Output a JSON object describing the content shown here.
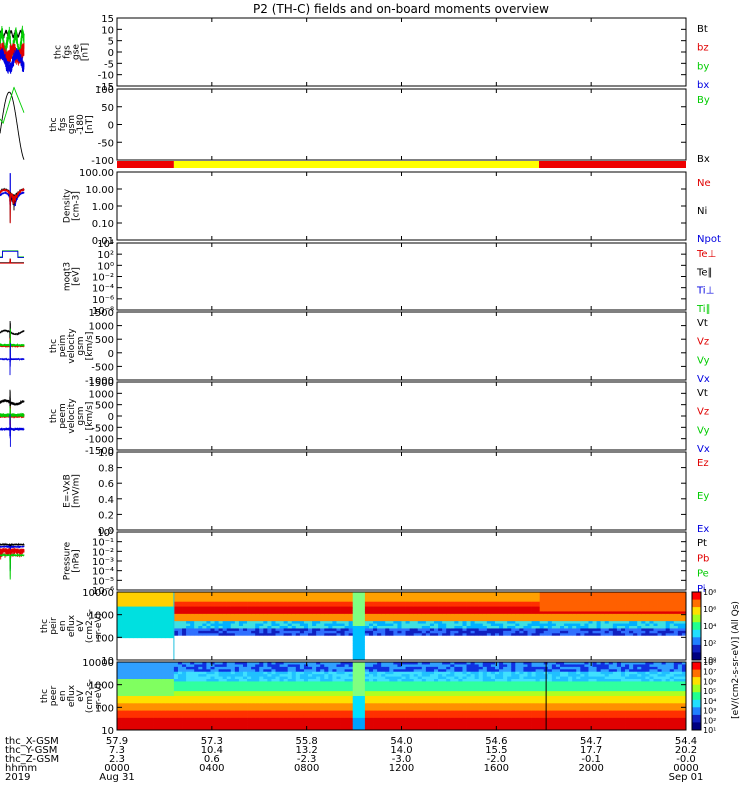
{
  "title": "P2 (TH-C) fields and on-board moments overview",
  "colors": {
    "black": "#000000",
    "red": "#e00000",
    "green": "#00cc00",
    "blue": "#0000e0",
    "yellow": "#ffff00",
    "barred": "#ee0000"
  },
  "chart_data": {
    "type": "line",
    "x_ticks_time": [
      "0000",
      "0400",
      "0800",
      "1200",
      "1600",
      "2000",
      "0000"
    ],
    "x_time_range_hours": [
      0,
      24
    ],
    "date_labels": {
      "start": "Aug 31",
      "end": "Sep 01",
      "year": "2019"
    },
    "ephemeris": {
      "rows": [
        {
          "label": "thc_X-GSM",
          "values": [
            "57.9",
            "57.3",
            "55.8",
            "54.0",
            "54.6",
            "54.7",
            "54.4"
          ]
        },
        {
          "label": "thc_Y-GSM",
          "values": [
            "7.3",
            "10.4",
            "13.2",
            "14.0",
            "15.5",
            "17.7",
            "20.2"
          ]
        },
        {
          "label": "thc_Z-GSM",
          "values": [
            "2.3",
            "0.6",
            "-2.3",
            "-3.0",
            "-2.0",
            "-0.1",
            "-0.0"
          ]
        },
        {
          "label": "hhmm",
          "values": [
            "0000",
            "0400",
            "0800",
            "1200",
            "1600",
            "2000",
            "0000"
          ]
        }
      ]
    },
    "panels": [
      {
        "ylabel": [
          "thc",
          "fgs",
          "gse",
          "[nT]"
        ],
        "ylim": [
          -15,
          15
        ],
        "scale": "linear",
        "ticks": [
          "15",
          "10",
          "5",
          "0",
          "-5",
          "-10",
          "-15"
        ],
        "series": [
          {
            "name": "Bt",
            "color": "#000000"
          },
          {
            "name": "bz",
            "color": "#e00000"
          },
          {
            "name": "by",
            "color": "#00cc00"
          },
          {
            "name": "bx",
            "color": "#0000e0"
          }
        ]
      },
      {
        "ylabel": [
          "thc",
          "fgs",
          "gsm",
          "-180",
          "[nT]"
        ],
        "ylim": [
          -125,
          100
        ],
        "scale": "linear",
        "ticks": [
          "100",
          "50",
          "0",
          "-50",
          "-100"
        ],
        "series": [
          {
            "name": "By",
            "color": "#00cc00"
          },
          {
            "name": "Bx",
            "color": "#000000"
          }
        ]
      },
      {
        "ylabel": [
          "Density",
          "[cm-3]"
        ],
        "ylim": [
          0.001,
          200
        ],
        "scale": "log",
        "ticks": [
          "100.00",
          "10.00",
          "1.00",
          "0.10",
          "0.01"
        ],
        "series": [
          {
            "name": "Ne",
            "color": "#e00000"
          },
          {
            "name": "Ni",
            "color": "#000000"
          },
          {
            "name": "Npot",
            "color": "#0000e0"
          }
        ]
      },
      {
        "ylabel": [
          "moqt3",
          "[eV]"
        ],
        "ylim": [
          1e-08,
          100000.0
        ],
        "scale": "log",
        "ticks": [
          "10⁴",
          "10²",
          "10⁰",
          "10⁻²",
          "10⁻⁴",
          "10⁻⁶",
          "10⁻⁸"
        ],
        "series": [
          {
            "name": "Te⊥",
            "color": "#e00000"
          },
          {
            "name": "Te∥",
            "color": "#000000"
          },
          {
            "name": "Ti⊥",
            "color": "#0000e0"
          },
          {
            "name": "Ti∥",
            "color": "#00cc00"
          }
        ]
      },
      {
        "ylabel": [
          "thc",
          "peim",
          "velocity",
          "gsm",
          "[km/s]"
        ],
        "ylim": [
          -1500,
          1500
        ],
        "scale": "linear",
        "ticks": [
          "1500",
          "1000",
          "500",
          "0",
          "-500",
          "-1000"
        ],
        "series": [
          {
            "name": "Vt",
            "color": "#000000"
          },
          {
            "name": "Vz",
            "color": "#e00000"
          },
          {
            "name": "Vy",
            "color": "#00cc00"
          },
          {
            "name": "Vx",
            "color": "#0000e0"
          }
        ]
      },
      {
        "ylabel": [
          "thc",
          "peem",
          "velocity",
          "gsm",
          "[km/s]"
        ],
        "ylim": [
          -1500,
          1500
        ],
        "scale": "linear",
        "ticks": [
          "1500",
          "1000",
          "500",
          "0",
          "-500",
          "-1000",
          "-1500"
        ],
        "series": [
          {
            "name": "Vt",
            "color": "#000000"
          },
          {
            "name": "Vz",
            "color": "#e00000"
          },
          {
            "name": "Vy",
            "color": "#00cc00"
          },
          {
            "name": "Vx",
            "color": "#0000e0"
          }
        ]
      },
      {
        "ylabel": [
          "E=-VxB",
          "[mV/m]"
        ],
        "ylim": [
          0,
          1.0
        ],
        "scale": "linear",
        "ticks": [
          "1.0",
          "0.8",
          "0.6",
          "0.4",
          "0.2",
          "0.0"
        ],
        "series": [
          {
            "name": "Ez",
            "color": "#e00000"
          },
          {
            "name": "Ey",
            "color": "#00cc00"
          },
          {
            "name": "Ex",
            "color": "#0000e0"
          }
        ]
      },
      {
        "ylabel": [
          "Pressure",
          "[nPa]"
        ],
        "ylim": [
          1e-06,
          1
        ],
        "scale": "log",
        "ticks": [
          "10⁰",
          "10⁻¹",
          "10⁻²",
          "10⁻³",
          "10⁻⁴",
          "10⁻⁵",
          "10⁻⁶"
        ],
        "series": [
          {
            "name": "Pt",
            "color": "#000000"
          },
          {
            "name": "Pb",
            "color": "#e00000"
          },
          {
            "name": "Pe",
            "color": "#00cc00"
          },
          {
            "name": "Pi",
            "color": "#0000e0"
          }
        ]
      },
      {
        "ylabel": [
          "thc",
          "peir",
          "en",
          "eflux",
          "eV",
          "(cm2-s-",
          "sr-eV)"
        ],
        "ylim": [
          5,
          20000
        ],
        "scale": "log",
        "kind": "spectrogram",
        "ticks": [
          "10000",
          "1000",
          "100",
          "10"
        ]
      },
      {
        "ylabel": [
          "thc",
          "peer",
          "en",
          "eflux",
          "eV",
          "(cm2-s-",
          "sr-eV)"
        ],
        "ylim": [
          5,
          20000
        ],
        "scale": "log",
        "kind": "spectrogram",
        "ticks": [
          "10000",
          "1000",
          "100",
          "10"
        ]
      }
    ],
    "colorbar": {
      "label": "[eV/(cm2-s-sr-eV)] (All Qs)",
      "upper_ticks": [
        "10⁸",
        "10⁶",
        "10⁴",
        "10²",
        "10⁰"
      ],
      "lower_ticks": [
        "10⁸",
        "10⁷",
        "10⁶",
        "10⁵",
        "10⁴",
        "10³",
        "10²",
        "10¹"
      ]
    },
    "mode_bar": [
      {
        "from_hour": 0,
        "to_hour": 2.4,
        "color": "#ee0000"
      },
      {
        "from_hour": 2.4,
        "to_hour": 17.8,
        "color": "#ffff00"
      },
      {
        "from_hour": 17.8,
        "to_hour": 24,
        "color": "#ee0000"
      }
    ]
  }
}
